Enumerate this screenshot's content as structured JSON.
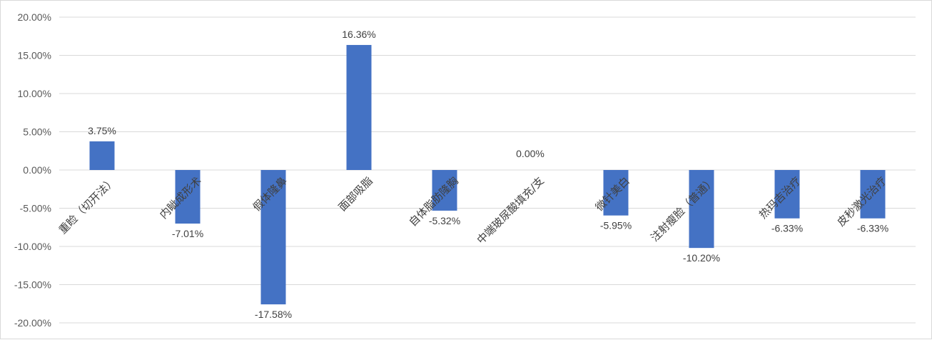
{
  "chart_data": {
    "type": "bar",
    "categories": [
      "重睑（切开法）",
      "内眦成形术",
      "假体隆鼻",
      "面部吸脂",
      "自体脂肪隆胸",
      "中端玻尿酸填充/支",
      "微针美白",
      "注射瘦脸（普通）",
      "热玛吉治疗",
      "皮秒激光治疗"
    ],
    "values": [
      3.75,
      -7.01,
      -17.58,
      16.36,
      -5.32,
      0.0,
      -5.95,
      -10.2,
      -6.33,
      -6.33
    ],
    "data_labels": [
      "3.75%",
      "-7.01%",
      "-17.58%",
      "16.36%",
      "-5.32%",
      "0.00%",
      "-5.95%",
      "-10.20%",
      "-6.33%",
      "-6.33%"
    ],
    "y_ticks": [
      "20.00%",
      "15.00%",
      "10.00%",
      "5.00%",
      "0.00%",
      "-5.00%",
      "-10.00%",
      "-15.00%",
      "-20.00%"
    ],
    "ylim": [
      -20,
      20
    ],
    "grid": true,
    "bar_color": "#4472C4",
    "grid_color": "#d9d9d9"
  }
}
